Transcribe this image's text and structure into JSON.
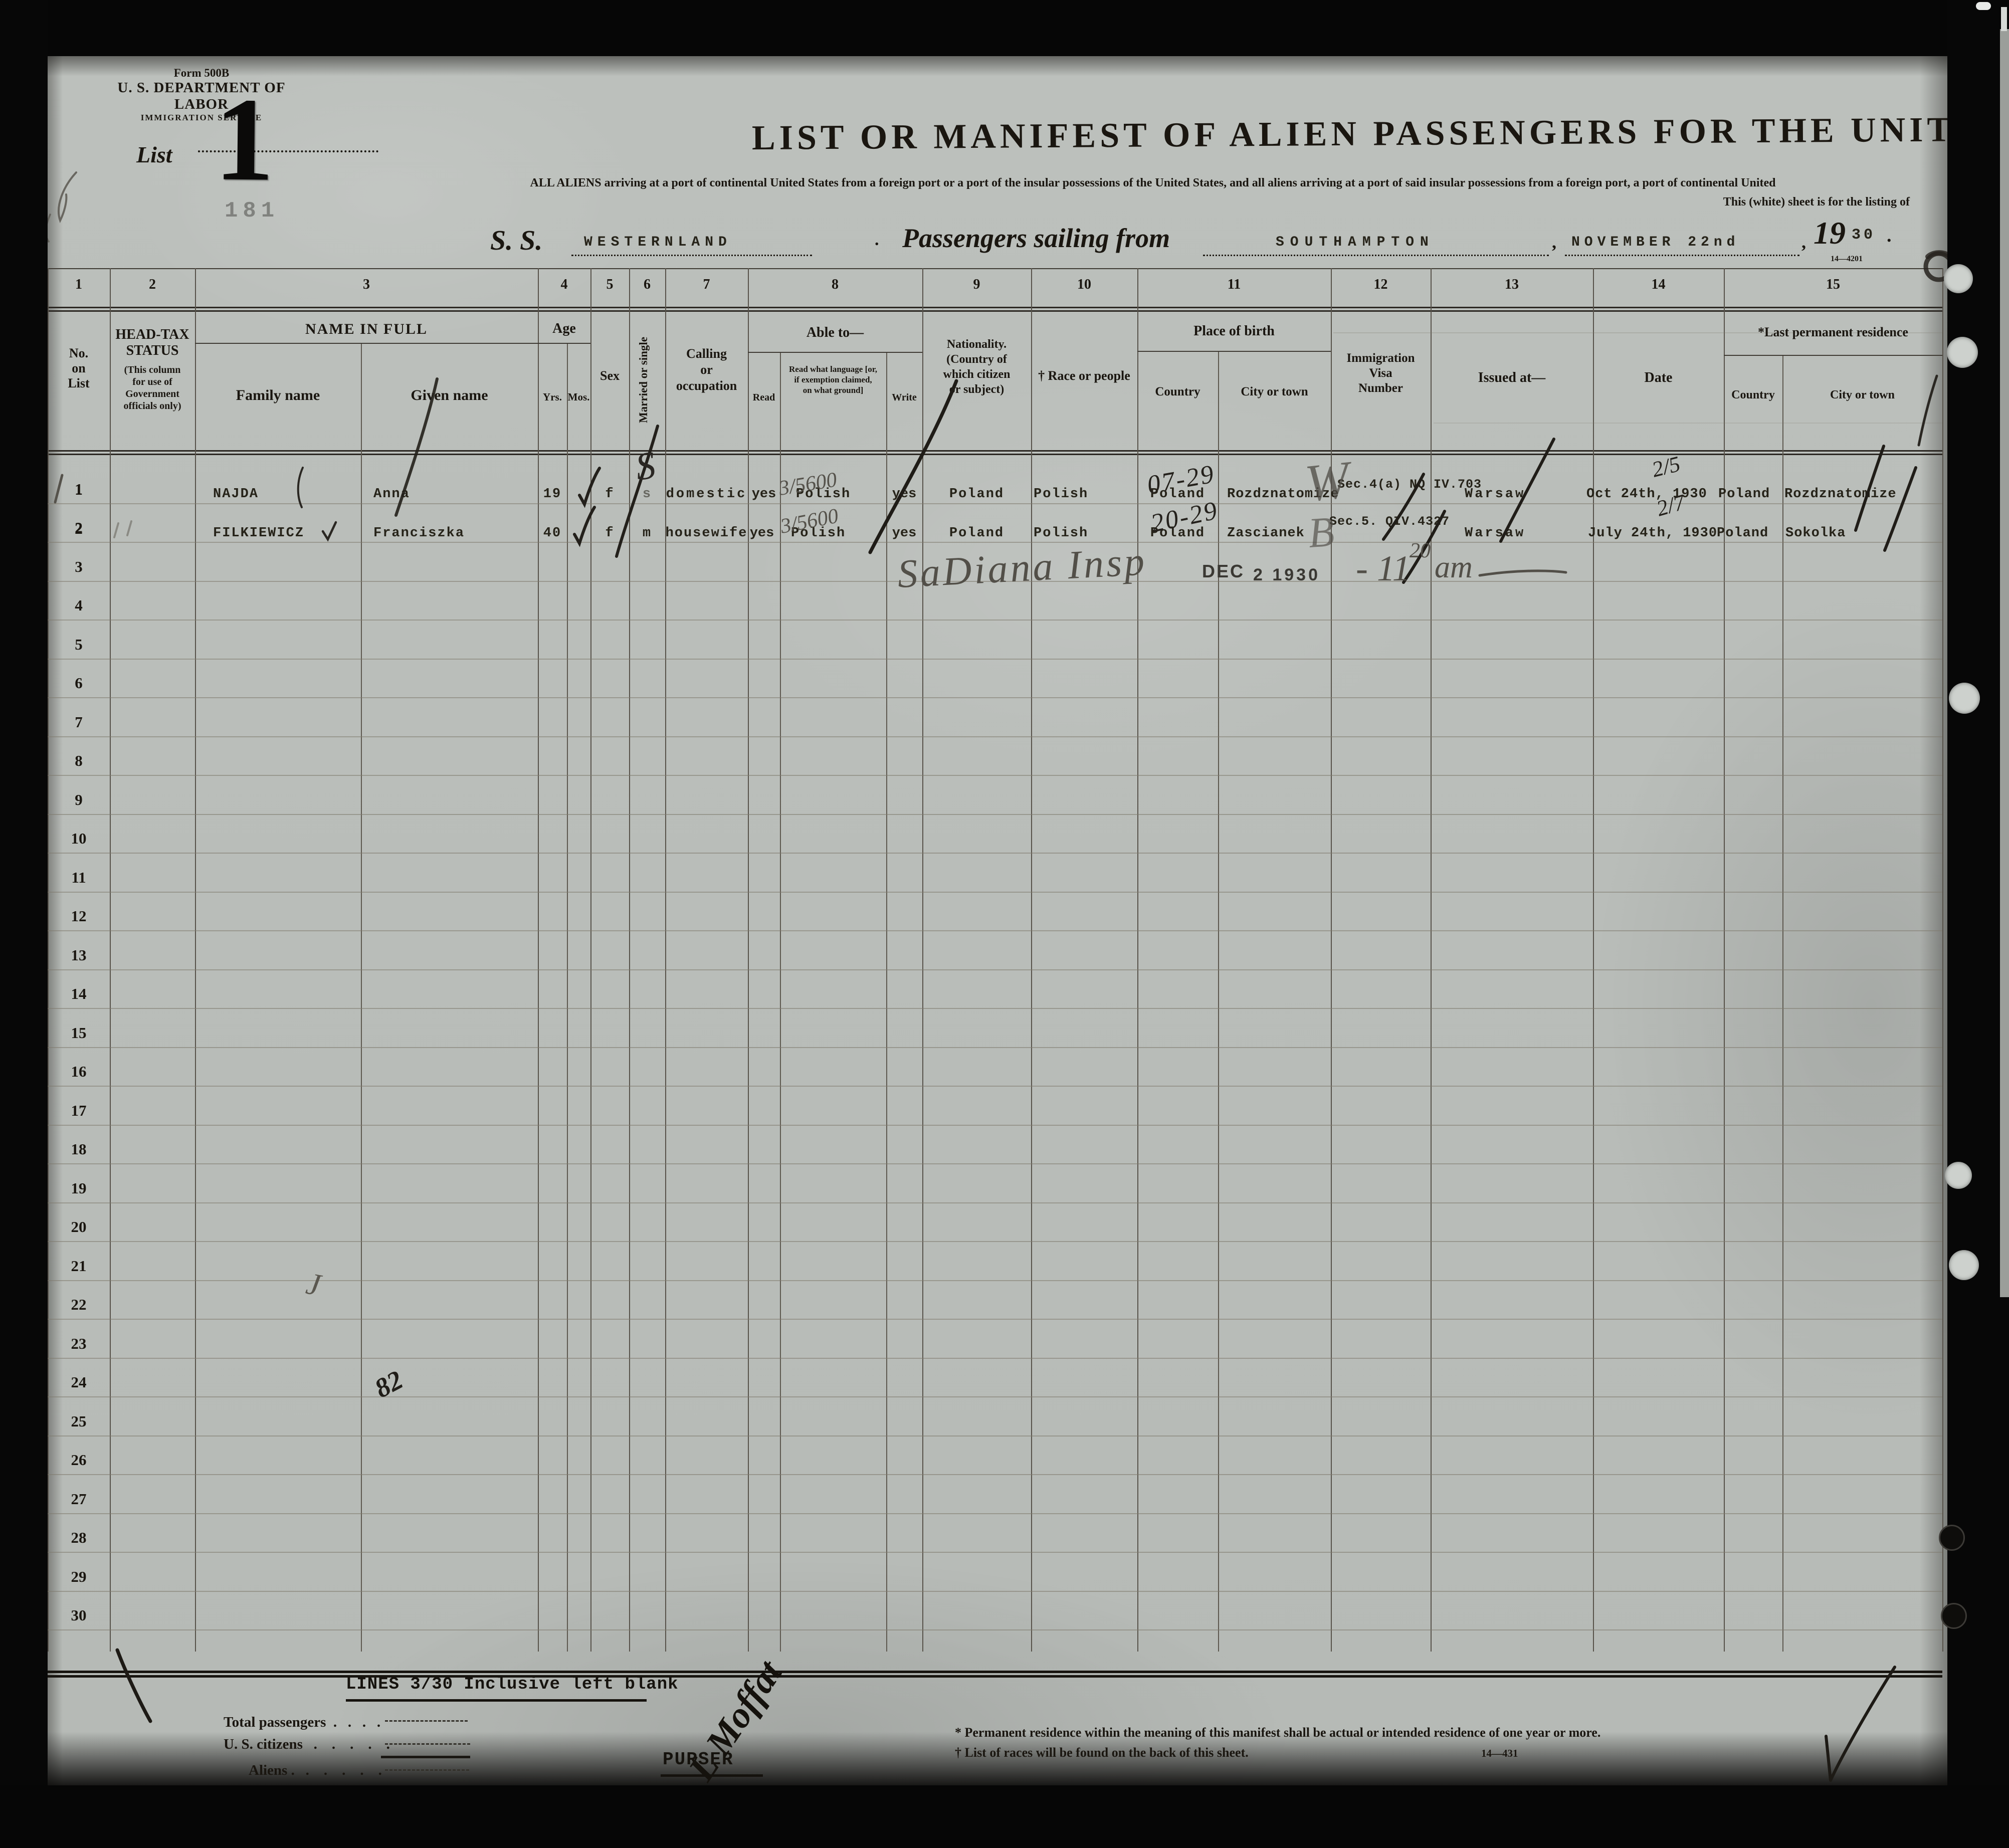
{
  "form": {
    "form_number": "Form 500B",
    "department": "U. S. DEPARTMENT OF LABOR",
    "service": "IMMIGRATION SERVICE",
    "list_label": "List",
    "list_stamp": "1"
  },
  "title": {
    "main": "LIST OR MANIFEST OF ALIEN PASSENGERS FOR THE UNITED",
    "sub1": "ALL ALIENS arriving at a port of continental United States from a foreign port or a port of the insular possessions of the United States, and all aliens arriving at a port of said insular possessions from a foreign port, a port of continental United",
    "sub2": "This (white) sheet is for the listing of"
  },
  "voyage": {
    "ss_label": "S. S.",
    "ship_name": "WESTERNLAND",
    "dot": ".",
    "sailing_label": "Passengers sailing from",
    "port": "SOUTHAMPTON",
    "comma1": ",",
    "sail_date": "NOVEMBER 22nd",
    "comma2": ",",
    "year_prefix": "19",
    "year_typed": "30",
    "period": ".",
    "print_code_top": "14—4201"
  },
  "table": {
    "row_numbers": [
      "1",
      "2",
      "3",
      "4",
      "5",
      "6",
      "7",
      "8",
      "9",
      "10",
      "11",
      "12",
      "13",
      "14",
      "15",
      "16",
      "17",
      "18",
      "19",
      "20",
      "21",
      "22",
      "23",
      "24",
      "25",
      "26",
      "27",
      "28",
      "29",
      "30"
    ],
    "columns": [
      {
        "num": "1",
        "title": "No.\non\nList"
      },
      {
        "num": "2",
        "title": "HEAD-TAX\nSTATUS",
        "subtitle": "(This column\nfor use of\nGovernment\nofficials only)"
      },
      {
        "num": "3",
        "title": "NAME IN FULL",
        "sub1": "Family name",
        "sub2": "Given name"
      },
      {
        "num": "4",
        "title": "Age",
        "sub1": "Yrs.",
        "sub2": "Mos."
      },
      {
        "num": "5",
        "title": "Sex"
      },
      {
        "num": "6",
        "title": "Married or single"
      },
      {
        "num": "7",
        "title": "Calling\nor\noccupation"
      },
      {
        "num": "8",
        "title": "Able to—",
        "sub1": "Read",
        "sub2": "Read what language [or,\nif exemption claimed,\non what ground]",
        "sub3": "Write"
      },
      {
        "num": "9",
        "title": "Nationality.\n(Country of\nwhich citizen\nor subject)"
      },
      {
        "num": "10",
        "title": "† Race or people"
      },
      {
        "num": "11",
        "title": "Place of birth",
        "sub1": "Country",
        "sub2": "City or town"
      },
      {
        "num": "12",
        "title": "Immigration\nVisa\nNumber"
      },
      {
        "num": "13",
        "title": "Issued at—"
      },
      {
        "num": "14",
        "title": "Date"
      },
      {
        "num": "15",
        "title": "*Last permanent residence",
        "sub1": "Country",
        "sub2": "City or town"
      }
    ]
  },
  "passengers": [
    {
      "no": "1",
      "family": "NAJDA",
      "given": "Anna",
      "age_yrs": "19",
      "sex": "f",
      "married": "s",
      "calling": "domestic",
      "read": "yes",
      "language": "Polish",
      "write": "yes",
      "nationality": "Poland",
      "race": "Polish",
      "birth_country": "Poland",
      "birth_city": "Rozdznatomize",
      "visa": "  Sec.4(a)\nNQ IV.703",
      "issued_at": "Warsaw",
      "date": "Oct 24th, 1930",
      "residence_country": "Poland",
      "residence_city": "Rozdznatomize"
    },
    {
      "no": "2",
      "family": "FILKIEWICZ",
      "given": "Franciszka",
      "age_yrs": "40",
      "sex": "f",
      "married": "m",
      "calling": "housewife",
      "read": "yes",
      "language": "Polish",
      "write": "yes",
      "nationality": "Poland",
      "race": "Polish",
      "birth_country": "Poland",
      "birth_city": "Zascianek",
      "visa": "Sec.5.\nQIV.4327",
      "issued_at": "Warsaw",
      "date": "July 24th, 1930",
      "residence_country": "Poland",
      "residence_city": "Sokolka"
    }
  ],
  "annotations": {
    "faint_181": "181",
    "s_mark": "S",
    "fraction1": "3/5600",
    "fraction2": "3/5600",
    "birth1": "07-29",
    "birth2": "20-29",
    "initials1": "W",
    "initials2": "B",
    "res1": "2/5",
    "res2": "2/7",
    "inspector": "SaDiana Insp",
    "stamp_month": "DEC",
    "stamp_date": "2 1930",
    "time": "- 11",
    "time_sup": "20",
    "time_am": "am",
    "j_mark": "J",
    "mark_82": "82",
    "signature": "L Moffat"
  },
  "footer": {
    "lines_note": "LINES 3/30 Inclusive left blank",
    "total_label": "Total passengers  .   .   .   .",
    "citizens_label": "U. S. citizens   .    .    .    .    .",
    "aliens_label": "Aliens .   .    .    .    .    .",
    "purser": "PURSER",
    "footnote1": "* Permanent residence within the meaning of this manifest shall be actual or intended residence of one year or more.",
    "footnote2": "† List of races will be found on the back of this sheet.",
    "print_code": "14—431"
  }
}
